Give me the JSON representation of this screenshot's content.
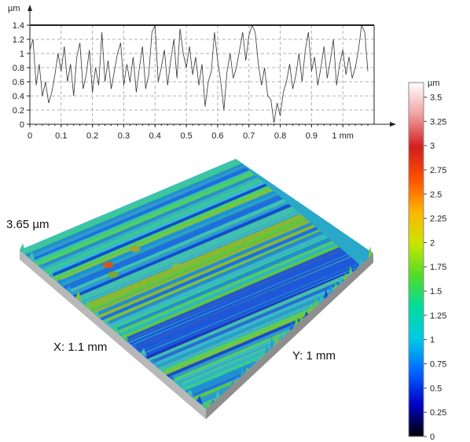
{
  "chart_data": [
    {
      "type": "line",
      "ylabel": "µm",
      "xlim": [
        0,
        1.1
      ],
      "ylim": [
        0,
        1.4
      ],
      "grid": true,
      "x_ticks": [
        "0",
        "0.1",
        "0.2",
        "0.3",
        "0.4",
        "0.5",
        "0.6",
        "0.7",
        "0.8",
        "0.9",
        "1 mm"
      ],
      "y_ticks": [
        "0",
        "0.2",
        "0.4",
        "0.6",
        "0.8",
        "1",
        "1.2",
        "1.4"
      ],
      "series": [
        {
          "x": [
            0,
            0.01,
            0.02,
            0.03,
            0.04,
            0.05,
            0.06,
            0.07,
            0.08,
            0.09,
            0.1,
            0.11,
            0.12,
            0.13,
            0.14,
            0.15,
            0.16,
            0.17,
            0.18,
            0.19,
            0.2,
            0.21,
            0.22,
            0.23,
            0.24,
            0.25,
            0.26,
            0.27,
            0.28,
            0.29,
            0.3,
            0.31,
            0.32,
            0.33,
            0.34,
            0.35,
            0.36,
            0.37,
            0.38,
            0.39,
            0.4,
            0.41,
            0.42,
            0.43,
            0.44,
            0.45,
            0.46,
            0.47,
            0.48,
            0.49,
            0.5,
            0.51,
            0.52,
            0.53,
            0.54,
            0.55,
            0.56,
            0.57,
            0.58,
            0.59,
            0.6,
            0.61,
            0.62,
            0.63,
            0.64,
            0.65,
            0.66,
            0.67,
            0.68,
            0.69,
            0.7,
            0.71,
            0.72,
            0.73,
            0.74,
            0.75,
            0.76,
            0.77,
            0.78,
            0.79,
            0.8,
            0.81,
            0.82,
            0.83,
            0.84,
            0.85,
            0.86,
            0.87,
            0.88,
            0.89,
            0.9,
            0.91,
            0.92,
            0.93,
            0.94,
            0.95,
            0.96,
            0.97,
            0.98,
            0.99,
            1.0,
            1.01,
            1.02,
            1.03,
            1.04,
            1.05,
            1.06,
            1.07,
            1.08
          ],
          "y": [
            1.05,
            1.2,
            0.55,
            0.85,
            0.4,
            0.6,
            0.3,
            0.45,
            0.7,
            1.0,
            0.75,
            1.1,
            0.6,
            0.85,
            0.4,
            0.95,
            1.15,
            0.5,
            0.7,
            1.05,
            0.45,
            0.8,
            0.55,
            1.3,
            0.6,
            0.9,
            0.5,
            0.75,
            1.0,
            1.15,
            0.55,
            0.85,
            0.6,
            0.95,
            0.45,
            0.8,
            1.1,
            0.5,
            0.7,
            1.3,
            1.4,
            0.6,
            0.8,
            1.05,
            0.55,
            0.9,
            1.2,
            0.65,
            1.35,
            1.0,
            0.8,
            1.1,
            0.7,
            0.95,
            0.55,
            0.85,
            0.25,
            0.6,
            0.75,
            1.3,
            0.9,
            0.6,
            0.2,
            0.75,
            1.0,
            0.65,
            0.8,
            1.05,
            1.3,
            0.9,
            1.25,
            1.4,
            1.3,
            0.85,
            0.55,
            0.8,
            0.4,
            0.35,
            0.02,
            0.3,
            0.12,
            0.45,
            0.6,
            0.85,
            0.5,
            0.7,
            1.0,
            0.6,
            1.05,
            1.3,
            0.75,
            0.95,
            0.55,
            0.8,
            1.1,
            0.65,
            0.9,
            1.2,
            0.55,
            0.85,
            1.05,
            0.7,
            0.95,
            0.65,
            0.8,
            1.05,
            1.4,
            1.3,
            0.75
          ]
        }
      ]
    },
    {
      "type": "heatmap",
      "z_label": "3.65 µm",
      "x_label": "X: 1.1 mm",
      "y_label": "Y: 1 mm",
      "colorbar": {
        "unit": "µm",
        "range": [
          0,
          3.65
        ],
        "ticks": [
          "3.5",
          "3.25",
          "3",
          "2.75",
          "2.5",
          "2.25",
          "2",
          "1.75",
          "1.5",
          "1.25",
          "1",
          "0.75",
          "0.5",
          "0.25",
          "0"
        ],
        "colors": [
          "#000000",
          "#0000c8",
          "#0064ff",
          "#00c8e6",
          "#00dca0",
          "#50dc28",
          "#c8e600",
          "#ffb400",
          "#ff5000",
          "#d21e1e",
          "#f0a0a0",
          "#ffffff"
        ]
      }
    }
  ]
}
